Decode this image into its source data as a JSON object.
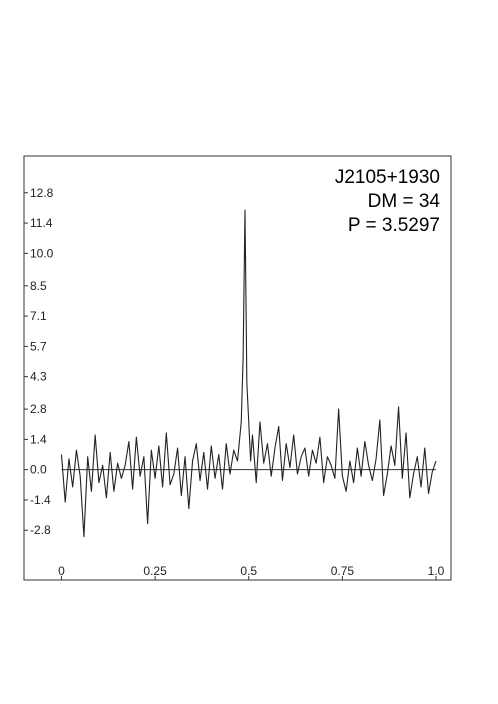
{
  "chart_data": {
    "type": "line",
    "annotations": [
      "J2105+1930",
      "DM = 34",
      "P = 3.5297"
    ],
    "xlim": [
      -0.1,
      1.04
    ],
    "ylim": [
      -5.1,
      14.5
    ],
    "x_ticks": [
      "0",
      "0.25",
      "0.5",
      "0.75",
      "1.0"
    ],
    "x_tick_values": [
      0,
      0.25,
      0.5,
      0.75,
      1.0
    ],
    "y_ticks": [
      "12.8",
      "11.4",
      "10.0",
      "8.5",
      "7.1",
      "5.7",
      "4.3",
      "2.8",
      "1.4",
      "0.0",
      "-1.4",
      "-2.8"
    ],
    "y_tick_values": [
      12.8,
      11.4,
      10.0,
      8.5,
      7.1,
      5.7,
      4.3,
      2.8,
      1.4,
      0.0,
      -1.4,
      -2.8
    ],
    "baseline": 0.0,
    "grid": false,
    "line_color": "#222222",
    "series": [
      {
        "x": [
          0.0,
          0.01,
          0.02,
          0.03,
          0.04,
          0.05,
          0.06,
          0.07,
          0.08,
          0.09,
          0.1,
          0.11,
          0.12,
          0.13,
          0.14,
          0.15,
          0.16,
          0.17,
          0.18,
          0.19,
          0.2,
          0.21,
          0.22,
          0.23,
          0.24,
          0.25,
          0.26,
          0.27,
          0.28,
          0.29,
          0.3,
          0.31,
          0.32,
          0.33,
          0.34,
          0.35,
          0.36,
          0.37,
          0.38,
          0.39,
          0.4,
          0.41,
          0.42,
          0.43,
          0.44,
          0.45,
          0.46,
          0.47,
          0.48,
          0.485,
          0.49,
          0.495,
          0.5,
          0.505,
          0.51,
          0.52,
          0.53,
          0.54,
          0.55,
          0.56,
          0.57,
          0.58,
          0.59,
          0.6,
          0.61,
          0.62,
          0.63,
          0.64,
          0.65,
          0.66,
          0.67,
          0.68,
          0.69,
          0.7,
          0.71,
          0.72,
          0.73,
          0.74,
          0.75,
          0.76,
          0.77,
          0.78,
          0.79,
          0.8,
          0.81,
          0.82,
          0.83,
          0.84,
          0.85,
          0.86,
          0.87,
          0.88,
          0.89,
          0.9,
          0.91,
          0.92,
          0.93,
          0.94,
          0.95,
          0.96,
          0.97,
          0.98,
          0.99,
          1.0
        ],
        "y": [
          0.7,
          -1.5,
          0.5,
          -0.8,
          0.9,
          -0.3,
          -3.1,
          0.6,
          -1.0,
          1.6,
          -0.6,
          0.2,
          -1.3,
          0.8,
          -1.0,
          0.3,
          -0.4,
          0.2,
          1.3,
          -0.9,
          1.5,
          -0.3,
          0.6,
          -2.5,
          0.9,
          -0.4,
          1.1,
          -0.8,
          1.7,
          -0.7,
          -0.2,
          1.0,
          -1.2,
          0.6,
          -1.8,
          0.4,
          1.2,
          -0.5,
          0.8,
          -0.9,
          1.1,
          -0.4,
          0.7,
          -0.9,
          1.2,
          -0.2,
          0.9,
          0.4,
          2.2,
          5.2,
          12.0,
          4.0,
          2.2,
          0.4,
          1.6,
          -0.6,
          2.2,
          0.3,
          1.2,
          -0.3,
          1.0,
          2.0,
          -0.5,
          1.2,
          0.1,
          1.6,
          -0.2,
          0.6,
          1.0,
          -0.3,
          0.9,
          0.3,
          1.5,
          -0.6,
          0.6,
          0.2,
          -0.4,
          2.8,
          -0.3,
          -1.0,
          0.4,
          -0.6,
          1.0,
          -0.3,
          1.3,
          0.2,
          -0.5,
          0.5,
          2.3,
          -1.2,
          -0.2,
          1.1,
          0.2,
          2.9,
          -0.4,
          1.7,
          -1.3,
          -0.2,
          0.6,
          -0.8,
          1.0,
          -1.1,
          -0.1,
          0.4
        ]
      }
    ]
  }
}
